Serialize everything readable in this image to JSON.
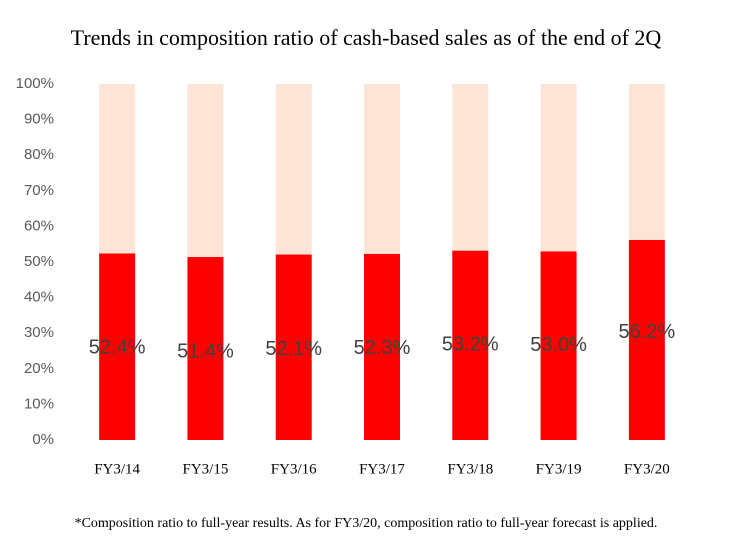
{
  "chart_data": {
    "type": "stacked_bar",
    "title": "Trends in composition ratio of cash-based sales as of the end of 2Q",
    "footnote": "*Composition ratio to full-year results. As for FY3/20, composition ratio to full-year forecast is applied.",
    "categories": [
      "FY3/14",
      "FY3/15",
      "FY3/16",
      "FY3/17",
      "FY3/18",
      "FY3/19",
      "FY3/20"
    ],
    "series": [
      {
        "color": "#ff0000",
        "values": [
          52.4,
          51.4,
          52.1,
          52.3,
          53.2,
          53.0,
          56.2
        ],
        "value_labels": [
          "52.4%",
          "51.4%",
          "52.1%",
          "52.3%",
          "53.2%",
          "53.0%",
          "56.2%"
        ]
      },
      {
        "color": "#fce4d6",
        "values": [
          47.6,
          48.6,
          47.9,
          47.7,
          46.8,
          47.0,
          43.8
        ]
      }
    ],
    "ylim": [
      0,
      100
    ],
    "yticks": [
      {
        "value": 0,
        "label": "0%"
      },
      {
        "value": 10,
        "label": "10%"
      },
      {
        "value": 20,
        "label": "20%"
      },
      {
        "value": 30,
        "label": "30%"
      },
      {
        "value": 40,
        "label": "40%"
      },
      {
        "value": 50,
        "label": "50%"
      },
      {
        "value": 60,
        "label": "60%"
      },
      {
        "value": 70,
        "label": "70%"
      },
      {
        "value": 80,
        "label": "80%"
      },
      {
        "value": 90,
        "label": "90%"
      },
      {
        "value": 100,
        "label": "100%"
      }
    ]
  }
}
